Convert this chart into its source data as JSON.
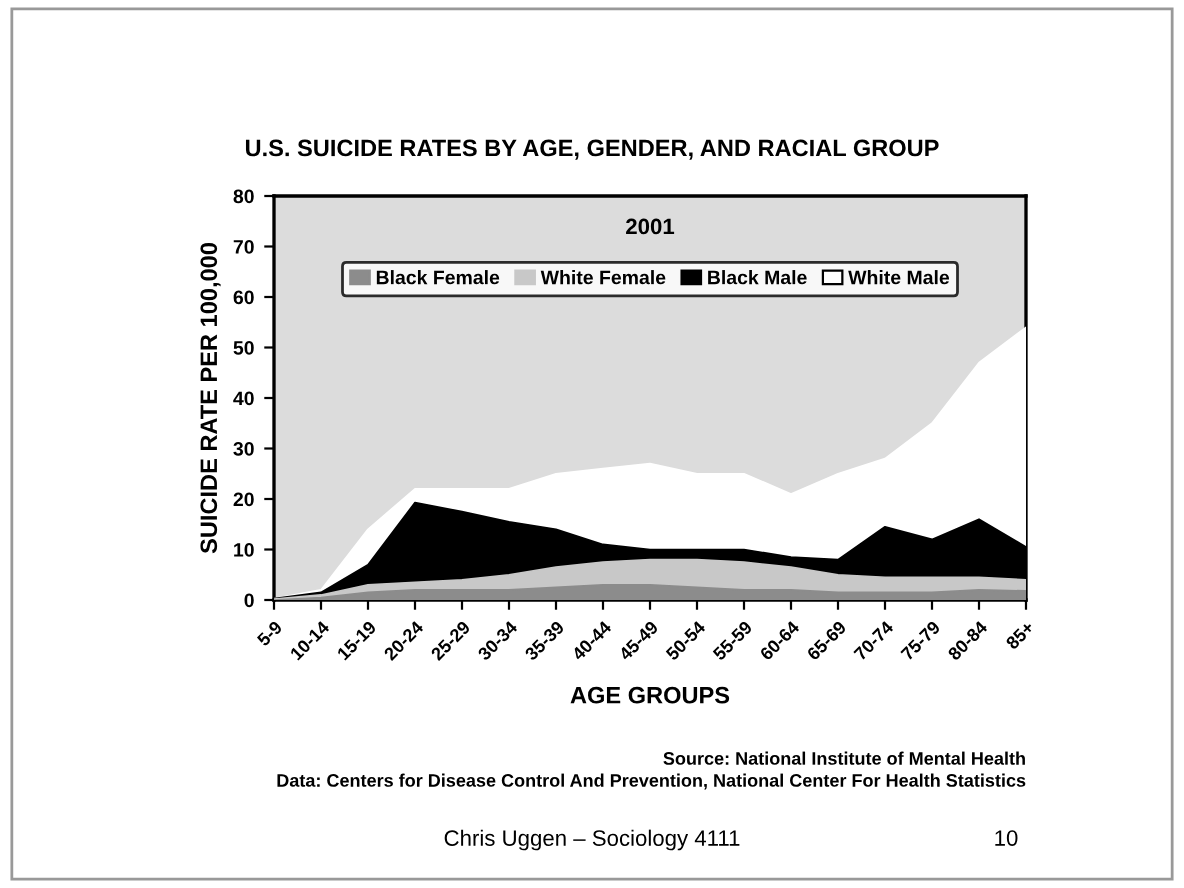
{
  "chart_data": {
    "type": "area",
    "title": "U.S. SUICIDE RATES BY AGE, GENDER, AND RACIAL GROUP",
    "subtitle": "2001",
    "xlabel": "AGE GROUPS",
    "ylabel": "SUICIDE RATE PER 100,000",
    "categories": [
      "5-9",
      "10-14",
      "15-19",
      "20-24",
      "25-29",
      "30-34",
      "35-39",
      "40-44",
      "45-49",
      "50-54",
      "55-59",
      "60-64",
      "65-69",
      "70-74",
      "75-79",
      "80-84",
      "85+"
    ],
    "series": [
      {
        "name": "Black Female",
        "color": "#8c8c8c",
        "values": [
          0,
          0.5,
          1.5,
          2,
          2,
          2,
          2.5,
          3,
          3,
          2.5,
          2,
          2,
          1.5,
          1.5,
          1.5,
          2,
          1.8
        ]
      },
      {
        "name": "White Female",
        "color": "#c8c8c8",
        "values": [
          0.2,
          1,
          3,
          3.5,
          4,
          5,
          6.5,
          7.5,
          8,
          8,
          7.5,
          6.5,
          5,
          4.5,
          4.5,
          4.5,
          4
        ]
      },
      {
        "name": "Black Male",
        "color": "#000000",
        "values": [
          0.3,
          1.5,
          7,
          19.3,
          17.5,
          15.5,
          14,
          11,
          10,
          10,
          10,
          8.5,
          8,
          14.5,
          12,
          16,
          10.5
        ]
      },
      {
        "name": "White Male",
        "color": "#ffffff",
        "values": [
          0.3,
          2,
          14,
          22,
          22,
          22,
          25,
          26,
          27,
          25,
          25,
          21,
          25,
          28,
          35,
          47,
          54
        ]
      }
    ],
    "ylim": [
      0,
      80
    ],
    "yticks": [
      0,
      10,
      20,
      30,
      40,
      50,
      60,
      70,
      80
    ],
    "grid": false,
    "legend": "top",
    "annotations": [
      "Source: National Institute of Mental Health",
      "Data: Centers for Disease Control And Prevention, National Center For Health Statistics",
      "Chris Uggen – Sociology 4111",
      "10"
    ]
  }
}
